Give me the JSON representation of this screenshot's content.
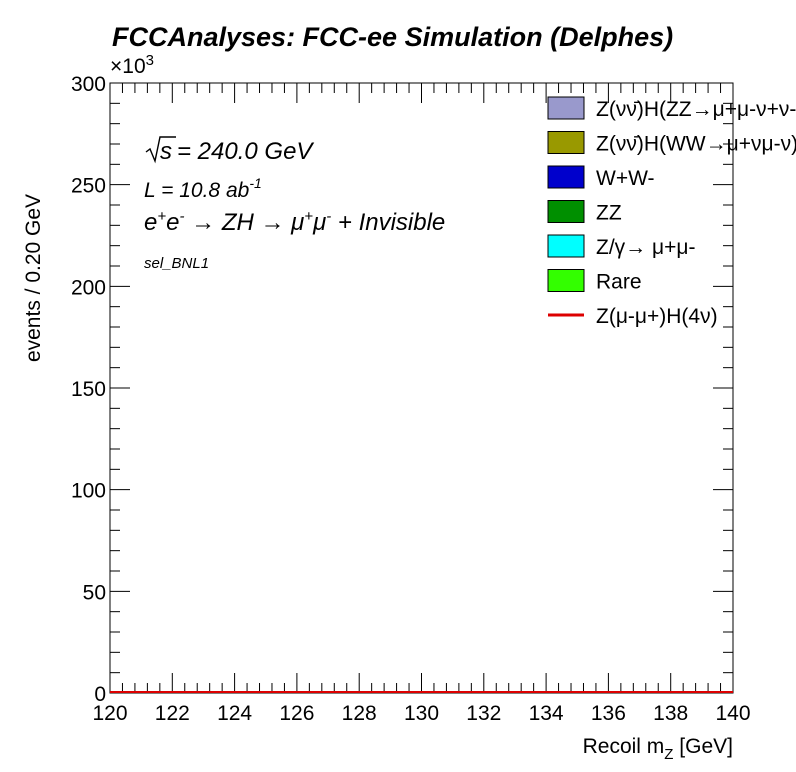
{
  "page_title": "FCCAnalyses: FCC-ee Simulation (Delphes)",
  "chart_data": {
    "type": "bar",
    "title": "FCCAnalyses: FCC-ee Simulation (Delphes)",
    "xlabel": "Recoil m_Z [GeV]",
    "ylabel": "events / 0.20 GeV",
    "y_multiplier": "×10^3",
    "xlim": [
      120,
      140
    ],
    "ylim": [
      0,
      300000
    ],
    "x_ticks": [
      "120",
      "122",
      "124",
      "126",
      "128",
      "130",
      "132",
      "134",
      "136",
      "138",
      "140"
    ],
    "y_ticks": [
      "0",
      "50",
      "100",
      "150",
      "200",
      "250",
      "300"
    ],
    "y_tick_values": [
      0,
      50000,
      100000,
      150000,
      200000,
      250000,
      300000
    ],
    "grid": false,
    "legend_position": "top-right",
    "annotations": {
      "sqrt_s": "√s = 240.0 GeV",
      "lumi": "L = 10.8 ab-1",
      "process": "e+e- → ZH → μ+μ- + Invisible",
      "selection": "sel_BNL1"
    },
    "series": [
      {
        "name": "Z(νν̄)H(ZZ→μ+μ-ν+ν-)",
        "color": "#9999cc",
        "style": "fill",
        "values": [
          0
        ]
      },
      {
        "name": "Z(νν̄)H(WW→μ+νμ-ν)",
        "color": "#999900",
        "style": "fill",
        "values": [
          0
        ]
      },
      {
        "name": "W+W-",
        "color": "#0000cc",
        "style": "fill",
        "values": [
          0
        ]
      },
      {
        "name": "ZZ",
        "color": "#008f00",
        "style": "fill",
        "values": [
          0
        ]
      },
      {
        "name": "Z/γ→ μ+μ-",
        "color": "#00ffff",
        "style": "fill",
        "values": [
          0
        ]
      },
      {
        "name": "Rare",
        "color": "#33ff00",
        "style": "fill",
        "values": [
          0
        ]
      },
      {
        "name": "Z(μ-μ+)H(4ν)",
        "color": "#dd0000",
        "style": "line",
        "values": [
          0
        ]
      }
    ]
  }
}
